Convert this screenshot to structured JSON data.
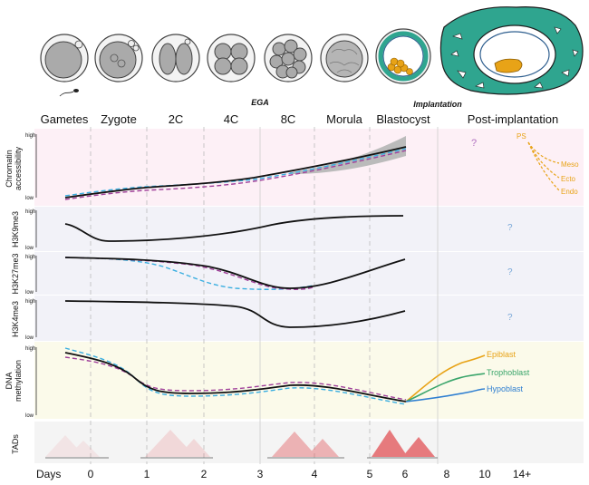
{
  "stages": [
    "Gametes",
    "Zygote",
    "2C",
    "4C",
    "8C",
    "Morula",
    "Blastocyst",
    "Post-implantation"
  ],
  "events": {
    "ega": "EGA",
    "implantation": "Implantation"
  },
  "rows": {
    "chromatin": {
      "label_line1": "Chromatin",
      "label_line2": "accessibility",
      "high": "high",
      "low": "low"
    },
    "h3k9me3": {
      "label": "H3K9me3",
      "high": "high",
      "low": "low"
    },
    "h3k27me3": {
      "label": "H3K27me3",
      "high": "high",
      "low": "low"
    },
    "h3k4me3": {
      "label": "H3K4me3",
      "high": "high",
      "low": "low"
    },
    "methylation": {
      "label_line1": "DNA",
      "label_line2": "methylation",
      "high": "high",
      "low": "low"
    },
    "tads": {
      "label": "TADs"
    }
  },
  "unknown_marker": "?",
  "germ_layers": [
    "PS",
    "Meso",
    "Ecto",
    "Endo"
  ],
  "lineages": [
    "Epiblast",
    "Trophoblast",
    "Hypoblast"
  ],
  "days": {
    "label": "Days",
    "ticks": [
      "0",
      "1",
      "2",
      "3",
      "4",
      "5",
      "6",
      "8",
      "10",
      "14+"
    ]
  },
  "colors": {
    "solid": "#111111",
    "blue_dashed": "#3aaee0",
    "purple_dashed": "#a0409a",
    "epiblast": "#e8a317",
    "trophoblast": "#3aa56b",
    "hypoblast": "#2f7fd1",
    "germ": "#e8a317",
    "teal": "#2fa58f",
    "tad": "#e0393e",
    "chromatin_bg": "#fdf0f6",
    "histone_bg": "#f2f2f8",
    "methyl_bg": "#fbfaea",
    "tad_bg": "#f4f4f4"
  }
}
